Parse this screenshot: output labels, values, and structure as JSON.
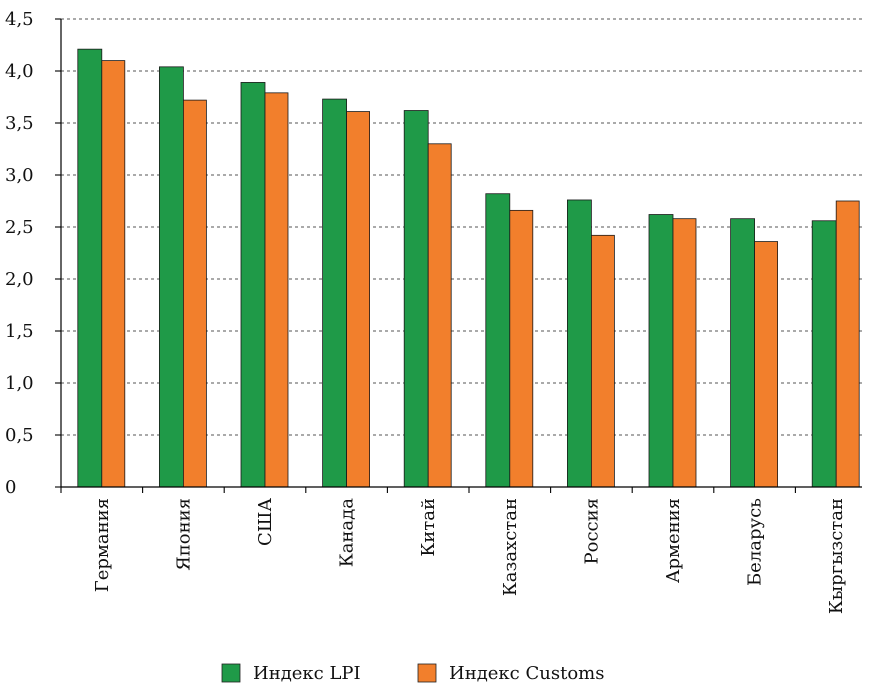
{
  "chart_data": {
    "type": "bar",
    "title": "",
    "xlabel": "",
    "ylabel": "",
    "categories": [
      "Германия",
      "Япония",
      "США",
      "Канада",
      "Китай",
      "Казахстан",
      "Россия",
      "Армения",
      "Беларусь",
      "Кыргызстан"
    ],
    "series": [
      {
        "name": "Индекс LPI",
        "color": "#1f9a48",
        "values": [
          4.21,
          4.04,
          3.89,
          3.73,
          3.62,
          2.82,
          2.76,
          2.62,
          2.58,
          2.56
        ]
      },
      {
        "name": "Индекс Customs",
        "color": "#f27f2c",
        "values": [
          4.1,
          3.72,
          3.79,
          3.61,
          3.3,
          2.66,
          2.42,
          2.58,
          2.36,
          2.75
        ]
      }
    ],
    "ylim": [
      0,
      4.5
    ],
    "ytick_values": [
      0,
      0.5,
      1.0,
      1.5,
      2.0,
      2.5,
      3.0,
      3.5,
      4.0,
      4.5
    ],
    "ytick_labels": [
      "0",
      "0,5",
      "1,0",
      "1,5",
      "2,0",
      "2,5",
      "3,0",
      "3,5",
      "4,0",
      "4,5"
    ],
    "grid": true,
    "legend": "bottom"
  }
}
